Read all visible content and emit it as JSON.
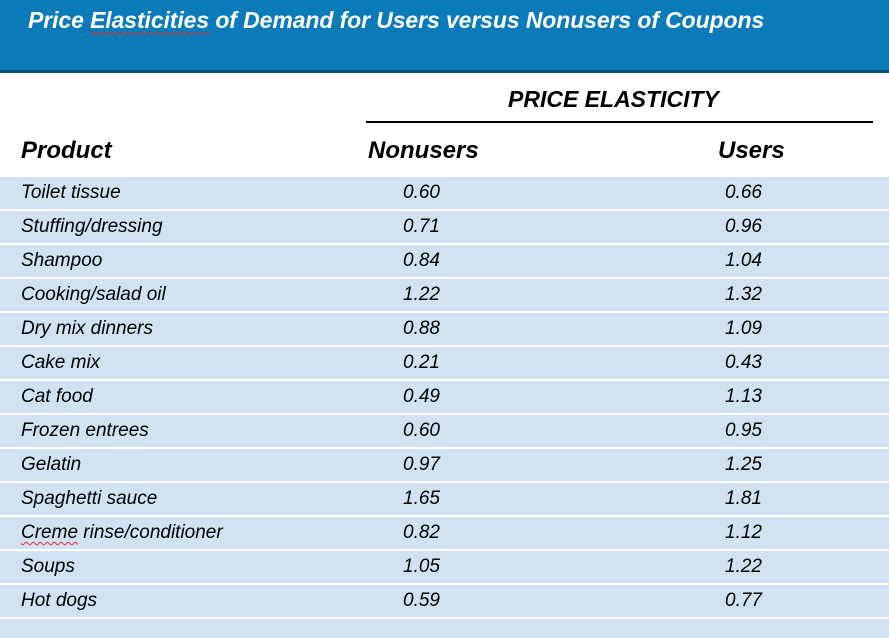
{
  "title": {
    "before": "Price ",
    "marked_word": "Elasticities",
    "after": " of Demand for Users versus Nonusers of Coupons"
  },
  "table": {
    "group_header": "PRICE ELASTICITY",
    "columns": [
      "Product",
      "Nonusers",
      "Users"
    ],
    "rows": [
      {
        "product": "Toilet tissue",
        "nonusers": "0.60",
        "users": "0.66"
      },
      {
        "product": "Stuffing/dressing",
        "nonusers": "0.71",
        "users": "0.96"
      },
      {
        "product": "Shampoo",
        "nonusers": "0.84",
        "users": "1.04"
      },
      {
        "product": "Cooking/salad oil",
        "nonusers": "1.22",
        "users": "1.32"
      },
      {
        "product": "Dry mix dinners",
        "nonusers": "0.88",
        "users": "1.09"
      },
      {
        "product": "Cake mix",
        "nonusers": "0.21",
        "users": "0.43"
      },
      {
        "product": "Cat food",
        "nonusers": "0.49",
        "users": "1.13"
      },
      {
        "product": "Frozen entrees",
        "nonusers": "0.60",
        "users": "0.95"
      },
      {
        "product": "Gelatin",
        "nonusers": "0.97",
        "users": "1.25"
      },
      {
        "product": "Spaghetti sauce",
        "nonusers": "1.65",
        "users": "1.81"
      },
      {
        "product": "Creme rinse/conditioner",
        "nonusers": "0.82",
        "users": "1.12"
      },
      {
        "product": "Soups",
        "nonusers": "1.05",
        "users": "1.22"
      },
      {
        "product": "Hot dogs",
        "nonusers": "0.59",
        "users": "0.77"
      }
    ]
  },
  "colors": {
    "title_bar": "#0a7ab8",
    "title_bar_border": "#0b4f7a",
    "table_fill": "#d2e2f2",
    "spellcheck": "#e03030"
  }
}
